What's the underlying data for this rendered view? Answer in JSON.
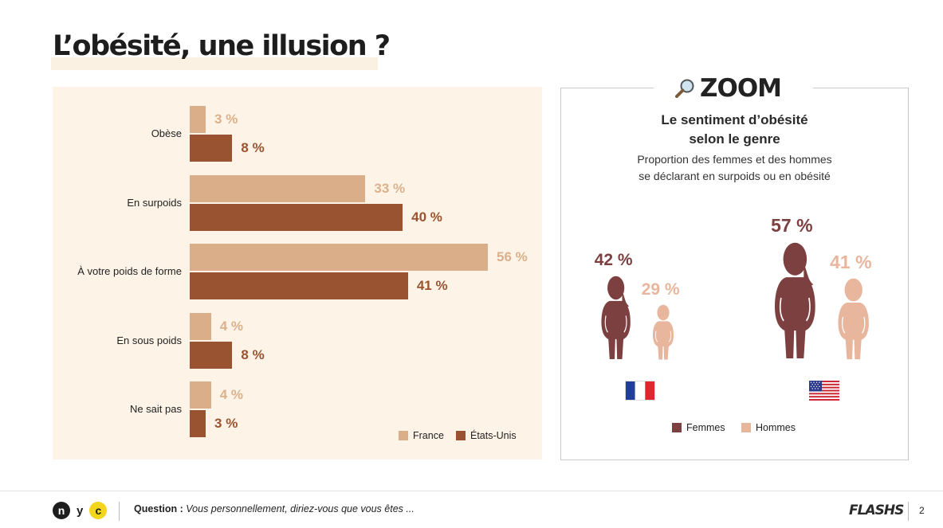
{
  "page": {
    "title": "L’obésité, une illusion ?"
  },
  "chart_data": [
    {
      "type": "bar",
      "orientation": "horizontal",
      "categories": [
        "Obèse",
        "En surpoids",
        "À votre poids de forme",
        "En sous poids",
        "Ne sait pas"
      ],
      "series": [
        {
          "name": "France",
          "values": [
            3,
            33,
            56,
            4,
            4
          ],
          "labels": [
            "3 %",
            "33 %",
            "56 %",
            "4 %",
            "4 %"
          ],
          "color": "#d9ae89"
        },
        {
          "name": "États-Unis",
          "values": [
            8,
            40,
            41,
            8,
            3
          ],
          "labels": [
            "8 %",
            "40 %",
            "41 %",
            "8 %",
            "3 %"
          ],
          "color": "#9a5330"
        }
      ],
      "xlim": [
        0,
        60
      ],
      "legend": [
        "France",
        "États-Unis"
      ],
      "legend_position": "bottom-right",
      "grid": false
    },
    {
      "type": "pictograph",
      "title": "Le sentiment d’obésité selon le genre",
      "subtitle": "Proportion des femmes et des hommes se déclarant en surpoids ou en obésité",
      "categories": [
        "France",
        "États-Unis"
      ],
      "series": [
        {
          "name": "Femmes",
          "values": [
            42,
            57
          ],
          "labels": [
            "42 %",
            "57 %"
          ],
          "color": "#7c4040"
        },
        {
          "name": "Hommes",
          "values": [
            29,
            41
          ],
          "labels": [
            "29 %",
            "41 %"
          ],
          "color": "#e8b59d"
        }
      ],
      "legend": [
        "Femmes",
        "Hommes"
      ],
      "legend_position": "bottom"
    }
  ],
  "zoom": {
    "label": "ZOOM",
    "title_line1": "Le sentiment d’obésité",
    "title_line2": "selon le genre",
    "subtitle_line1": "Proportion des femmes et des hommes",
    "subtitle_line2": "se déclarant en surpoids ou en obésité",
    "icons": {
      "zoom": "magnifier-icon",
      "woman": "woman-figure-icon",
      "man": "man-figure-icon",
      "flag_fr": "france-flag-icon",
      "flag_us": "usa-flag-icon"
    }
  },
  "footer": {
    "logo_n": "n",
    "logo_y": "y",
    "logo_c": "c",
    "question_label": "Question :",
    "question_text": "Vous personnellement, diriez-vous que vous êtes  ...",
    "brand": "FLASHS",
    "page_number": "2"
  }
}
